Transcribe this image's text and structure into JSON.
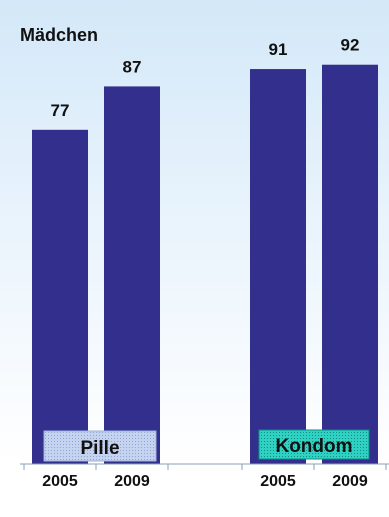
{
  "chart_data": {
    "type": "bar",
    "title": "Mädchen",
    "groups": [
      "Pille",
      "Kondom"
    ],
    "categories": [
      "2005",
      "2009",
      "2005",
      "2009"
    ],
    "values": [
      77,
      87,
      91,
      92
    ],
    "ylim": [
      0,
      100
    ],
    "grid": false,
    "legend": "none",
    "colors": {
      "bar": "#332f8d",
      "label_pille_bg": "#b7c8ea",
      "label_kondom_bg": "#24c7b8",
      "axis": "#8aa0b8"
    }
  }
}
